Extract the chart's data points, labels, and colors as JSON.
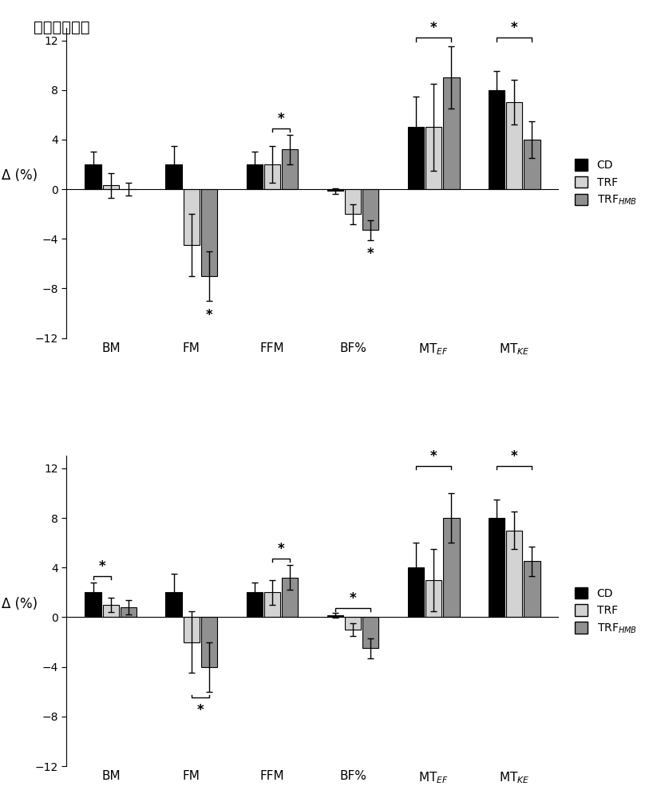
{
  "title": "身体组成变化",
  "ylabel": "Δ (%)",
  "ylim": [
    -12,
    13
  ],
  "yticks": [
    -12,
    -8,
    -4,
    0,
    4,
    8,
    12
  ],
  "top": {
    "CD": [
      2.0,
      2.0,
      2.0,
      -0.15,
      5.0,
      8.0
    ],
    "TRF": [
      0.3,
      -4.5,
      2.0,
      -2.0,
      5.0,
      7.0
    ],
    "TRF_HMB": [
      0.0,
      -7.0,
      3.2,
      -3.3,
      9.0,
      4.0
    ],
    "CD_err": [
      1.0,
      1.5,
      1.0,
      0.2,
      2.5,
      1.5
    ],
    "TRF_err": [
      1.0,
      2.5,
      1.5,
      0.8,
      3.5,
      1.8
    ],
    "TRF_HMB_err": [
      0.5,
      2.0,
      1.2,
      0.8,
      2.5,
      1.5
    ]
  },
  "bottom": {
    "CD": [
      2.0,
      2.0,
      2.0,
      0.15,
      4.0,
      8.0
    ],
    "TRF": [
      1.0,
      -2.0,
      2.0,
      -1.0,
      3.0,
      7.0
    ],
    "TRF_HMB": [
      0.8,
      -4.0,
      3.2,
      -2.5,
      8.0,
      4.5
    ],
    "CD_err": [
      0.8,
      1.5,
      0.8,
      0.2,
      2.0,
      1.5
    ],
    "TRF_err": [
      0.6,
      2.5,
      1.0,
      0.5,
      2.5,
      1.5
    ],
    "TRF_HMB_err": [
      0.6,
      2.0,
      1.0,
      0.8,
      2.0,
      1.2
    ]
  },
  "colors": {
    "CD": "#000000",
    "TRF": "#d3d3d3",
    "TRF_HMB": "#909090"
  },
  "bar_width": 0.22
}
